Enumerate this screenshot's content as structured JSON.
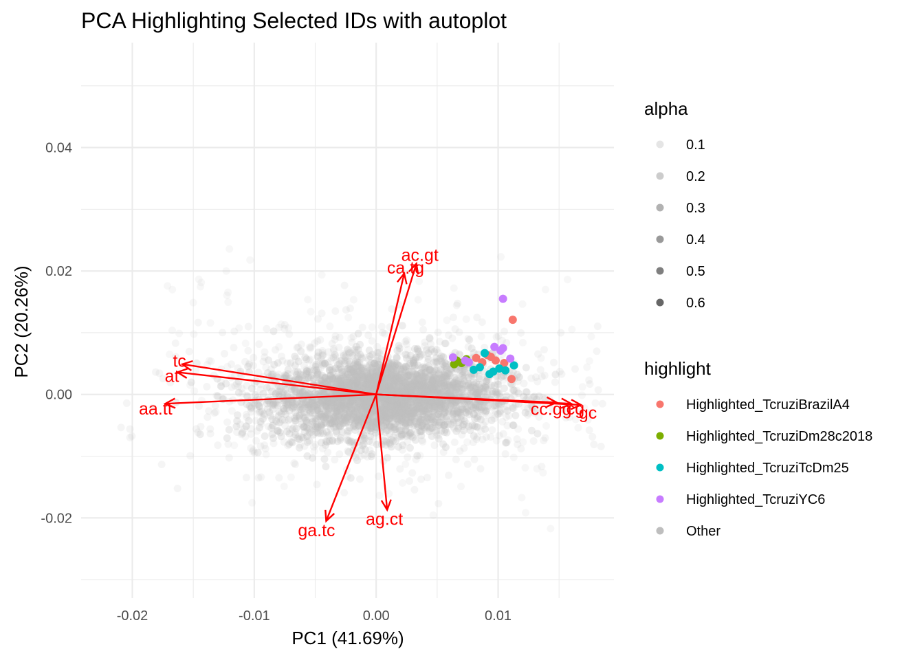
{
  "chart_data": {
    "type": "scatter",
    "title": "PCA Highlighting Selected IDs with autoplot",
    "xlabel": "PC1 (41.69%)",
    "ylabel": "PC2 (20.26%)",
    "xlim": [
      -0.0242,
      0.0195
    ],
    "ylim": [
      -0.033,
      0.057
    ],
    "x_ticks": [
      -0.02,
      -0.01,
      0.0,
      0.01
    ],
    "x_tick_labels": [
      "-0.02",
      "-0.01",
      "0.00",
      "0.01"
    ],
    "y_ticks": [
      -0.02,
      0.0,
      0.02,
      0.04
    ],
    "y_tick_labels": [
      "-0.02",
      "0.00",
      "0.02",
      "0.04"
    ],
    "grid": true,
    "legend_position": "right",
    "legends": [
      {
        "title": "alpha",
        "entries": [
          {
            "label": "0.1",
            "alpha": 0.1
          },
          {
            "label": "0.2",
            "alpha": 0.2
          },
          {
            "label": "0.3",
            "alpha": 0.3
          },
          {
            "label": "0.4",
            "alpha": 0.4
          },
          {
            "label": "0.5",
            "alpha": 0.5
          },
          {
            "label": "0.6",
            "alpha": 0.6
          }
        ]
      },
      {
        "title": "highlight",
        "entries": [
          {
            "label": "Highlighted_TcruziBrazilA4",
            "color": "#F8766D"
          },
          {
            "label": "Highlighted_TcruziDm28c2018",
            "color": "#7CAE00"
          },
          {
            "label": "Highlighted_TcruziTcDm25",
            "color": "#00BFC4"
          },
          {
            "label": "Highlighted_TcruziYC6",
            "color": "#C77CFF"
          },
          {
            "label": "Other",
            "color": "#BEBEBE"
          }
        ]
      }
    ],
    "loadings": [
      {
        "label": "ac.gt",
        "x": 0.0033,
        "y": 0.0212
      },
      {
        "label": "ca.tg",
        "x": 0.0023,
        "y": 0.0196
      },
      {
        "label": "tc",
        "x": -0.0159,
        "y": 0.0049
      },
      {
        "label": "at",
        "x": -0.0163,
        "y": 0.0036
      },
      {
        "label": "aa.tt",
        "x": -0.0173,
        "y": -0.0015
      },
      {
        "label": "cc.gg",
        "x": 0.0148,
        "y": -0.0013
      },
      {
        "label": "gc",
        "x": 0.0168,
        "y": -0.0017
      },
      {
        "label": "cg",
        "x": 0.016,
        "y": -0.0015
      },
      {
        "label": "ga.tc",
        "x": -0.0041,
        "y": -0.0205
      },
      {
        "label": "ag.ct",
        "x": 0.0009,
        "y": -0.0187
      }
    ],
    "series": [
      {
        "name": "Other",
        "color": "#BEBEBE",
        "note_points": "dense cloud centered near origin, x approx -0.012 to 0.013, y approx -0.013 to 0.012, with sparse outliers"
      },
      {
        "name": "Highlighted_TcruziBrazilA4",
        "color": "#F8766D",
        "points": [
          [
            0.0112,
            0.0121
          ],
          [
            0.0111,
            0.0025
          ],
          [
            0.0091,
            0.0064
          ],
          [
            0.0098,
            0.0055
          ],
          [
            0.0082,
            0.0059
          ],
          [
            0.0087,
            0.0052
          ],
          [
            0.0105,
            0.0051
          ],
          [
            0.0094,
            0.0061
          ]
        ]
      },
      {
        "name": "Highlighted_TcruziDm28c2018",
        "color": "#7CAE00",
        "points": [
          [
            0.0066,
            0.0055
          ],
          [
            0.007,
            0.0051
          ],
          [
            0.0074,
            0.0057
          ],
          [
            0.0064,
            0.0049
          ]
        ]
      },
      {
        "name": "Highlighted_TcruziTcDm25",
        "color": "#00BFC4",
        "points": [
          [
            0.0113,
            0.0047
          ],
          [
            0.0096,
            0.0037
          ],
          [
            0.0085,
            0.0044
          ],
          [
            0.0101,
            0.0042
          ],
          [
            0.0089,
            0.0067
          ],
          [
            0.0106,
            0.0039
          ],
          [
            0.008,
            0.004
          ],
          [
            0.0093,
            0.0033
          ]
        ]
      },
      {
        "name": "Highlighted_TcruziYC6",
        "color": "#C77CFF",
        "points": [
          [
            0.0104,
            0.0155
          ],
          [
            0.0104,
            0.0075
          ],
          [
            0.0102,
            0.0071
          ],
          [
            0.0097,
            0.0077
          ],
          [
            0.0076,
            0.0052
          ],
          [
            0.0073,
            0.0055
          ],
          [
            0.0063,
            0.006
          ],
          [
            0.011,
            0.0058
          ]
        ]
      }
    ]
  }
}
